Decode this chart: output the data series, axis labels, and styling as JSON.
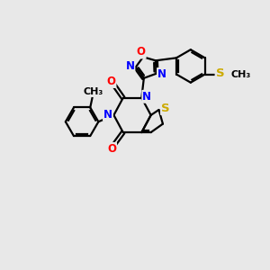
{
  "bg_color": "#e8e8e8",
  "bond_color": "#000000",
  "bond_width": 1.6,
  "atom_colors": {
    "N": "#0000ff",
    "O": "#ff0000",
    "S": "#ccaa00",
    "C": "#000000"
  },
  "font_size": 8.5,
  "fig_size": [
    3.0,
    3.0
  ],
  "dpi": 100
}
